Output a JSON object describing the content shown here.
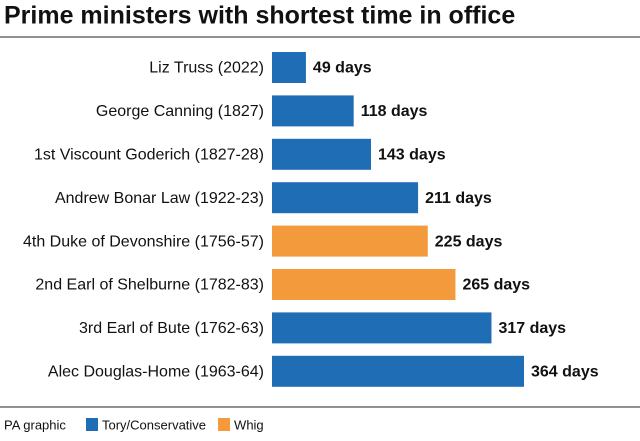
{
  "chart_data": {
    "type": "bar",
    "orientation": "horizontal",
    "title": "Prime ministers with shortest time in office",
    "categories": [
      "Liz Truss (2022)",
      "George Canning (1827)",
      "1st Viscount Goderich (1827-28)",
      "Andrew Bonar Law (1922-23)",
      "4th Duke of Devonshire (1756-57)",
      "2nd Earl of Shelburne (1782-83)",
      "3rd Earl of Bute (1762-63)",
      "Alec Douglas-Home (1963-64)"
    ],
    "values": [
      49,
      118,
      143,
      211,
      225,
      265,
      317,
      364
    ],
    "value_labels": [
      "49 days",
      "118 days",
      "143 days",
      "211 days",
      "225 days",
      "265 days",
      "317 days",
      "364 days"
    ],
    "colors": [
      "#1f6db5",
      "#1f6db5",
      "#1f6db5",
      "#1f6db5",
      "#f39a3c",
      "#f39a3c",
      "#1f6db5",
      "#1f6db5"
    ],
    "xlim": [
      0,
      364
    ],
    "source": "PA graphic",
    "legend": [
      {
        "name": "Tory/Conservative",
        "color": "#1f6db5"
      },
      {
        "name": "Whig",
        "color": "#f39a3c"
      }
    ]
  }
}
